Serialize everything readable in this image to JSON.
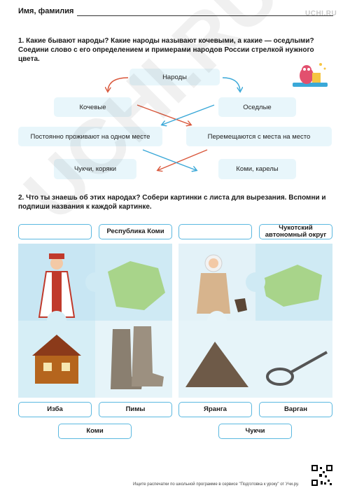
{
  "header": {
    "name_label": "Имя, фамилия",
    "logo": "UCHI.RU"
  },
  "task1": {
    "text": "1. Какие бывают народы? Какие народы называют кочевыми, а какие — оседлыми? Соедини слово с его определением и примерами народов России стрелкой нужного цвета.",
    "top": "Народы",
    "nomadic": "Кочевые",
    "settled": "Оседлые",
    "def_left": "Постоянно проживают на одном месте",
    "def_right": "Перемещаются с места на место",
    "ex_left": "Чукчи, коряки",
    "ex_right": "Коми, карелы"
  },
  "task2": {
    "text": "2. Что ты знаешь об этих народах? Собери картинки с листа для вырезания. Вспомни и подпиши названия к каждой картинке.",
    "left": {
      "blank": "",
      "region": "Республика Коми",
      "item1": "Изба",
      "item2": "Пимы",
      "people": "Коми"
    },
    "right": {
      "blank": "",
      "region": "Чукотский автономный округ",
      "item1": "Яранга",
      "item2": "Варган",
      "people": "Чукчи"
    }
  },
  "footer": {
    "text": "Ищите распечатки по школьной программе в сервисе \"Подготовка к уроку\" от Учи.ру."
  },
  "colors": {
    "accent": "#5bb8e0",
    "box": "#e8f6fb",
    "arrow_red": "#d9573b",
    "arrow_blue": "#3aa8d8"
  }
}
